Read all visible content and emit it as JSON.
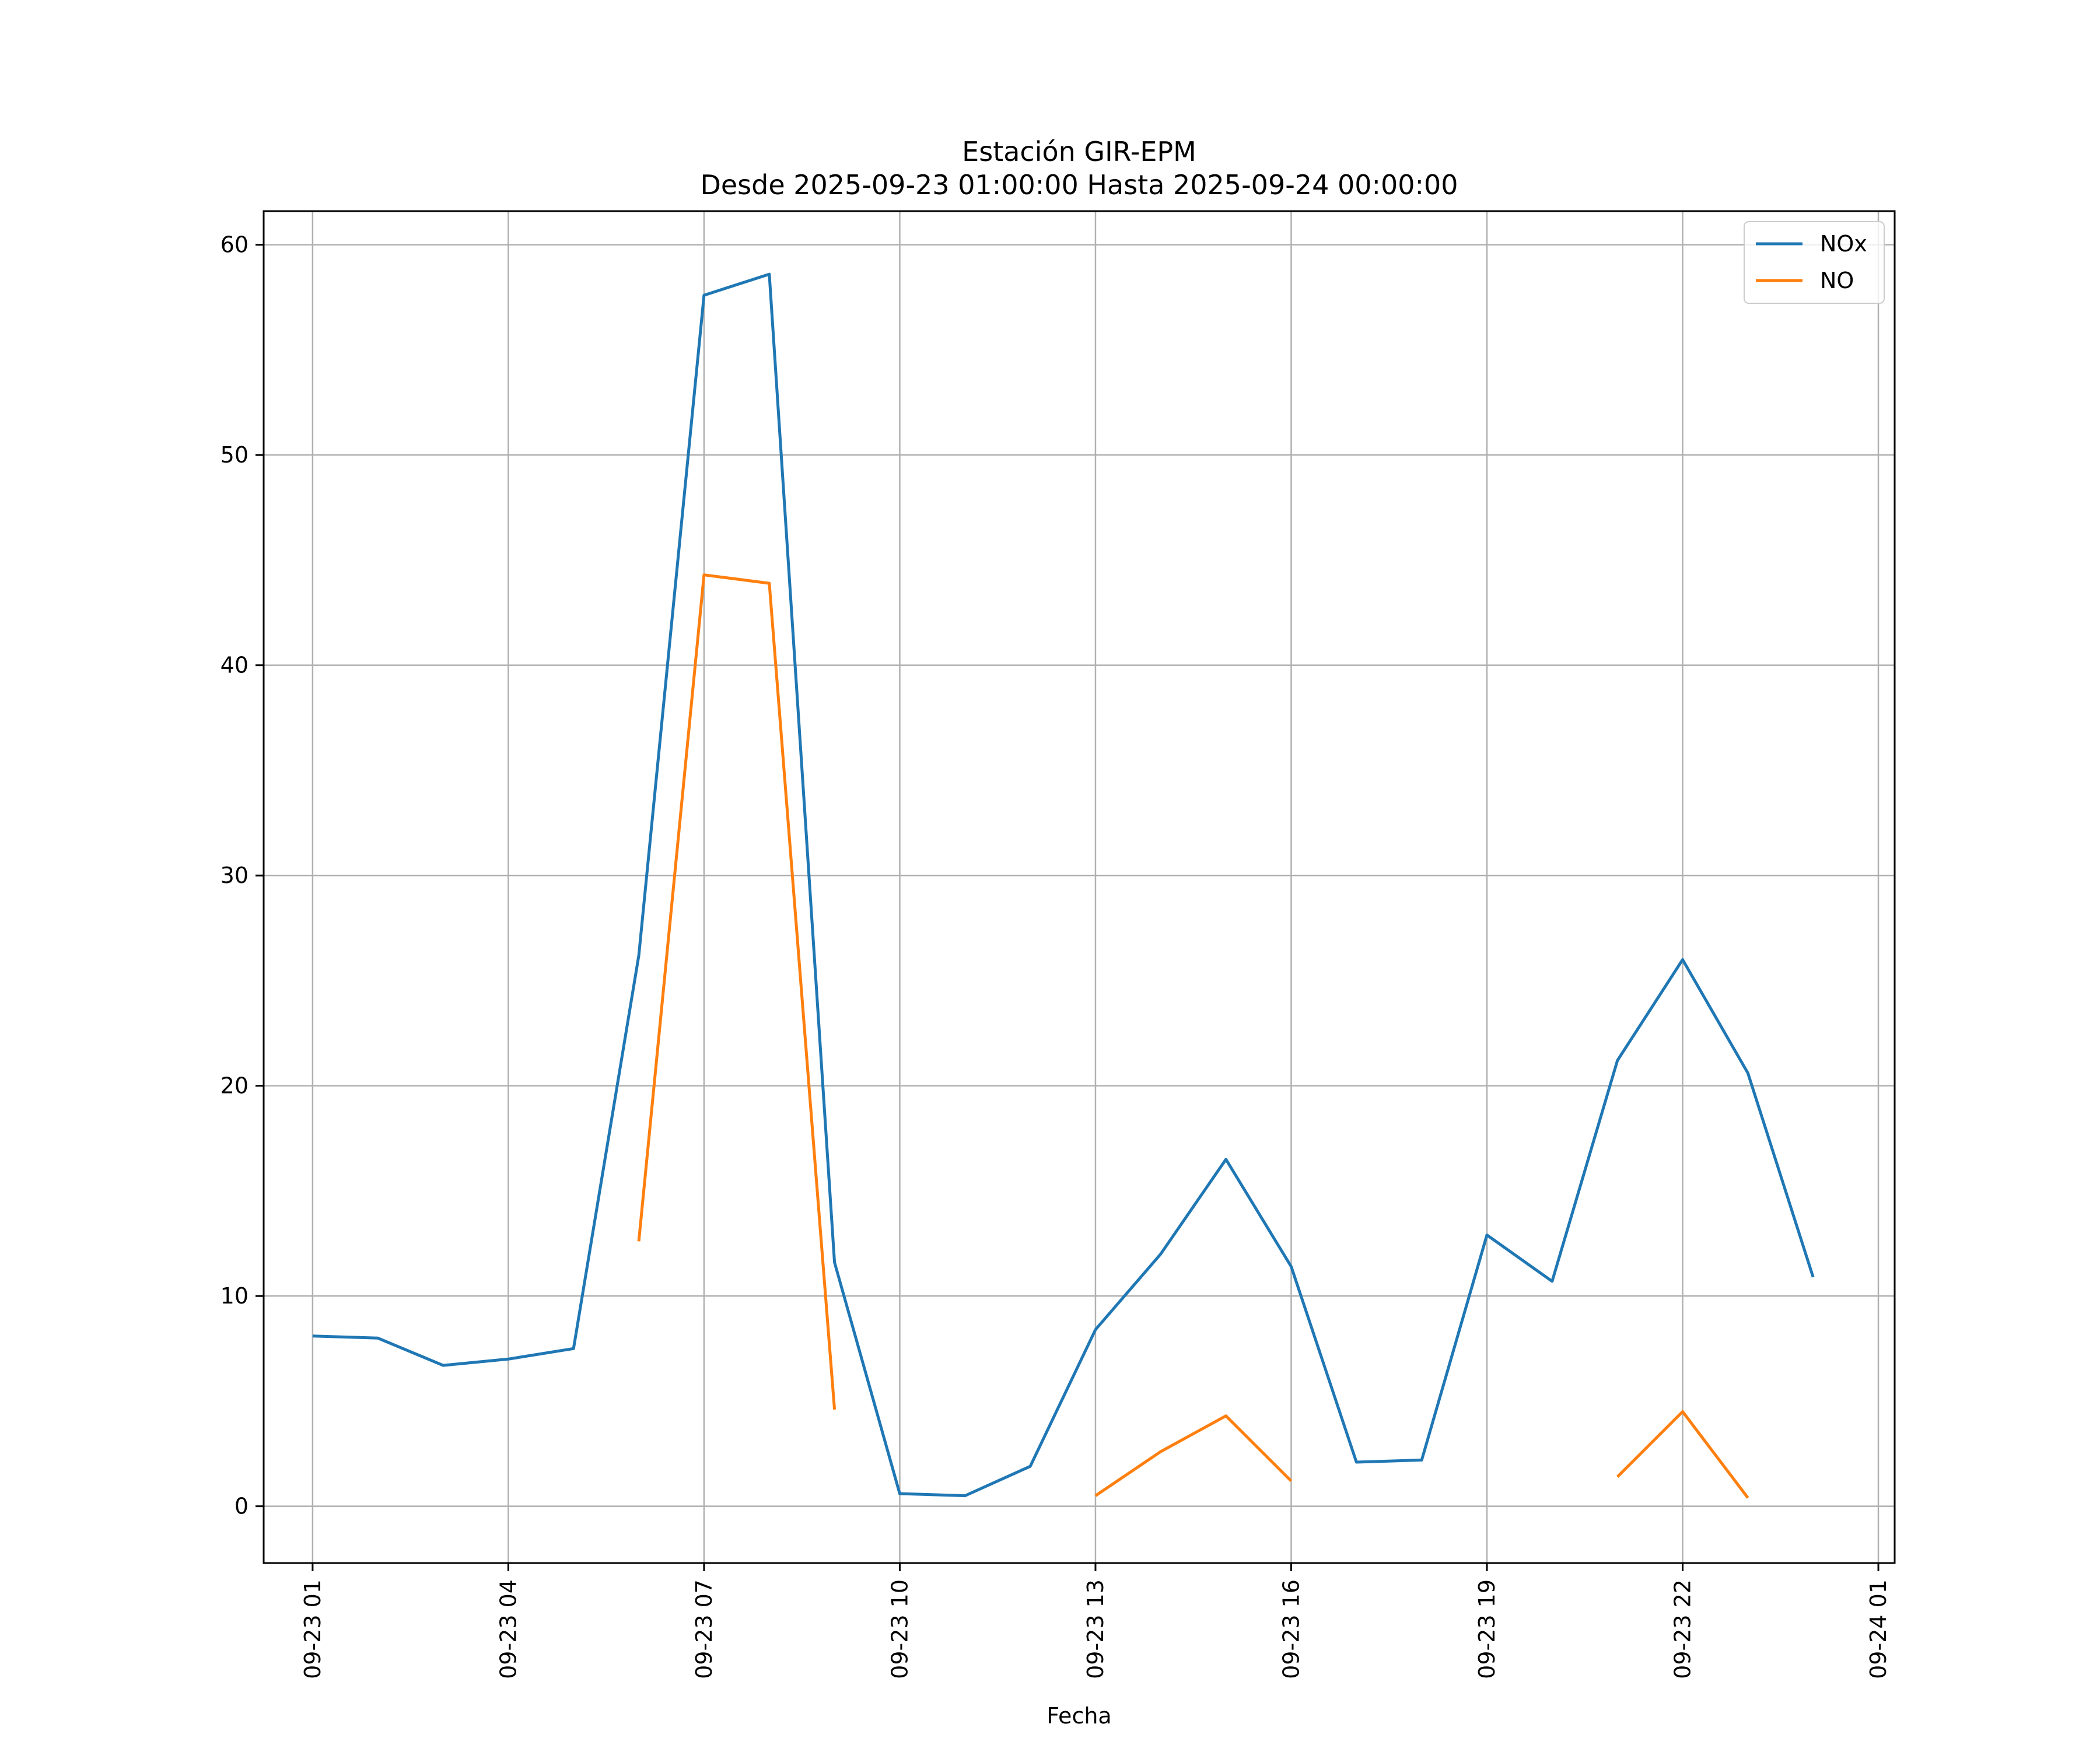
{
  "chart_data": {
    "type": "line",
    "title": "Estación GIR-EPM",
    "subtitle": "Desde 2025-09-23 01:00:00 Hasta 2025-09-24 00:00:00",
    "xlabel": "Fecha",
    "ylabel": "",
    "x": [
      "2025-09-23 01:00",
      "2025-09-23 02:00",
      "2025-09-23 03:00",
      "2025-09-23 04:00",
      "2025-09-23 05:00",
      "2025-09-23 06:00",
      "2025-09-23 07:00",
      "2025-09-23 08:00",
      "2025-09-23 09:00",
      "2025-09-23 10:00",
      "2025-09-23 11:00",
      "2025-09-23 12:00",
      "2025-09-23 13:00",
      "2025-09-23 14:00",
      "2025-09-23 15:00",
      "2025-09-23 16:00",
      "2025-09-23 17:00",
      "2025-09-23 18:00",
      "2025-09-23 19:00",
      "2025-09-23 20:00",
      "2025-09-23 21:00",
      "2025-09-23 22:00",
      "2025-09-23 23:00",
      "2025-09-24 00:00"
    ],
    "series": [
      {
        "name": "NOx",
        "color": "#1f77b4",
        "values": [
          8.1,
          8.0,
          6.7,
          7.0,
          7.5,
          26.2,
          57.6,
          58.6,
          11.6,
          0.6,
          0.5,
          1.9,
          8.4,
          12.0,
          16.5,
          11.4,
          2.1,
          2.2,
          12.9,
          10.7,
          21.2,
          26.0,
          20.6,
          10.9
        ]
      },
      {
        "name": "NO",
        "color": "#ff7f0e",
        "values": [
          null,
          null,
          null,
          null,
          null,
          12.6,
          44.3,
          43.9,
          4.6,
          null,
          null,
          null,
          0.5,
          2.6,
          4.3,
          1.2,
          null,
          null,
          null,
          null,
          1.4,
          4.5,
          0.4,
          null
        ]
      }
    ],
    "xticks": [
      "09-23 01",
      "09-23 04",
      "09-23 07",
      "09-23 10",
      "09-23 13",
      "09-23 16",
      "09-23 19",
      "09-23 22",
      "09-24 01"
    ],
    "xlim": [
      "2025-09-23 00:15",
      "2025-09-24 01:15"
    ],
    "yticks": [
      0,
      10,
      20,
      30,
      40,
      50,
      60
    ],
    "ylim": [
      -2.7,
      61.6
    ],
    "grid": true,
    "legend_position": "top-right"
  }
}
